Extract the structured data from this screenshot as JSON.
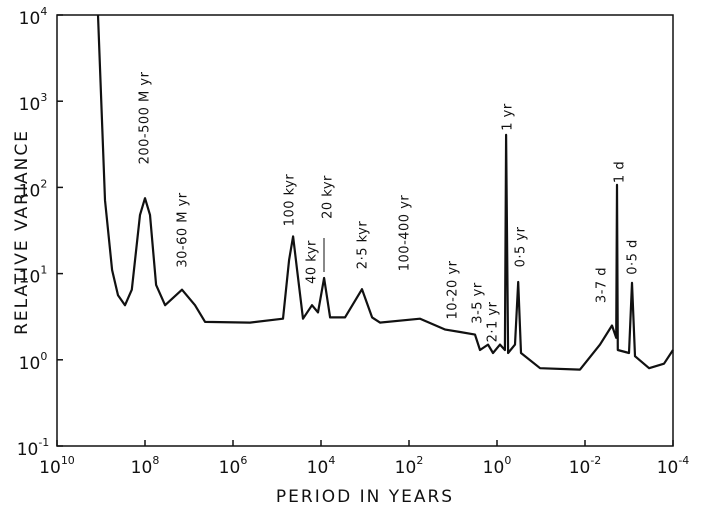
{
  "chart_data": {
    "type": "line",
    "xlabel": "PERIOD IN YEARS",
    "ylabel": "RELATIVE VARIANCE",
    "xscale": "log",
    "yscale": "log",
    "xreversed": true,
    "color": "#111111",
    "xlim": [
      10000000000,
      0.0001
    ],
    "ylim": [
      0.1,
      10000
    ],
    "xticks": [
      {
        "value": 10000000000,
        "label": "10^10"
      },
      {
        "value": 100000000,
        "label": "10^8"
      },
      {
        "value": 1000000,
        "label": "10^6"
      },
      {
        "value": 10000,
        "label": "10^4"
      },
      {
        "value": 100,
        "label": "10^2"
      },
      {
        "value": 1,
        "label": "10^0"
      },
      {
        "value": 0.01,
        "label": "10^-2"
      },
      {
        "value": 0.0001,
        "label": "10^-4"
      }
    ],
    "yticks": [
      {
        "value": 0.1,
        "label": "10^-1"
      },
      {
        "value": 1,
        "label": "10^0"
      },
      {
        "value": 10,
        "label": "10^1"
      },
      {
        "value": 100,
        "label": "10^2"
      },
      {
        "value": 1000,
        "label": "10^3"
      },
      {
        "value": 10000,
        "label": "10^4"
      }
    ],
    "x": [
      1170000000,
      810000000,
      560000000,
      410000000,
      285000000,
      200000000,
      130000000,
      100000000,
      77000000,
      56000000,
      35000000,
      14400000,
      7300000,
      4300000,
      410000,
      73000,
      53000,
      43000,
      35000,
      25600,
      16000,
      11700,
      8500,
      6200,
      2850,
      1170,
      690,
      456,
      56,
      15,
      6.9,
      3.16,
      2.43,
      1.6,
      1.23,
      0.855,
      0.66,
      0.62,
      0.56,
      0.39,
      0.33,
      0.285,
      0.105,
      0.013,
      0.00456,
      0.00243,
      0.00195,
      0.00187,
      0.0018,
      0.001,
      0.000855,
      0.00073,
      0.00035,
      0.00016,
      0.0001
    ],
    "values": [
      10000,
      71,
      11,
      5.6,
      4.3,
      6.5,
      48,
      75,
      48,
      7.4,
      4.3,
      6.5,
      4.3,
      2.75,
      2.7,
      3.0,
      14.4,
      27,
      11,
      3.0,
      4.3,
      3.55,
      8.9,
      3.1,
      3.1,
      6.6,
      3.1,
      2.7,
      3.0,
      2.24,
      2.1,
      1.96,
      1.3,
      1.5,
      1.2,
      1.5,
      1.3,
      406,
      1.2,
      1.5,
      8.0,
      1.2,
      0.8,
      0.77,
      1.5,
      2.5,
      1.8,
      107,
      1.3,
      1.2,
      7.8,
      1.1,
      0.8,
      0.9,
      1.3
    ],
    "annotations": [
      "200-500 M yr",
      "30-60 M yr",
      "100 kyr",
      "40 kyr",
      "20 kyr",
      "2·5 kyr",
      "100-400 yr",
      "10-20 yr",
      "3-5 yr",
      "2·1 yr",
      "1 yr",
      "0·5 yr",
      "3-7 d",
      "1 d",
      "0·5 d"
    ]
  }
}
